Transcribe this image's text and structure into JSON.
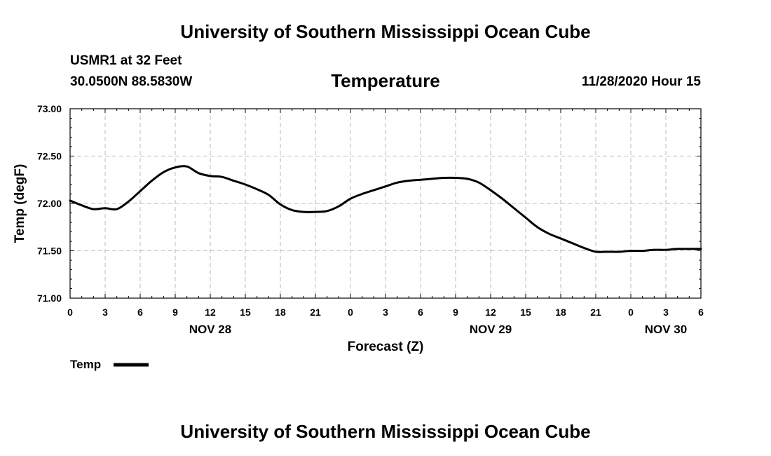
{
  "header": {
    "title": "University of Southern Mississippi Ocean Cube",
    "station": "USMR1 at 32 Feet",
    "coords": "30.0500N 88.5830W",
    "parameter": "Temperature",
    "timestamp": "11/28/2020 Hour 15"
  },
  "footer": {
    "title": "University of Southern Mississippi Ocean Cube"
  },
  "chart_data": {
    "type": "line",
    "title": "Temperature",
    "xlabel": "Forecast (Z)",
    "ylabel": "Temp (degF)",
    "ylim": [
      71.0,
      73.0
    ],
    "yticks": [
      "71.00",
      "71.50",
      "72.00",
      "72.50",
      "73.00"
    ],
    "xlim_hours": [
      0,
      54
    ],
    "xtick_labels": [
      "0",
      "3",
      "6",
      "9",
      "12",
      "15",
      "18",
      "21",
      "0",
      "3",
      "6",
      "9",
      "12",
      "15",
      "18",
      "21",
      "0",
      "3",
      "6"
    ],
    "day_labels": [
      {
        "label": "NOV 28",
        "hour": 12
      },
      {
        "label": "NOV 29",
        "hour": 36
      },
      {
        "label": "NOV 30",
        "hour": 51
      }
    ],
    "grid": true,
    "legend": {
      "label": "Temp",
      "placement": "bottom-left"
    },
    "series": [
      {
        "name": "Temp",
        "x_hours": [
          0,
          1,
          2,
          3,
          4,
          5,
          6,
          7,
          8,
          9,
          10,
          11,
          12,
          13,
          14,
          15,
          16,
          17,
          18,
          19,
          20,
          21,
          22,
          23,
          24,
          25,
          26,
          27,
          28,
          29,
          30,
          31,
          32,
          33,
          34,
          35,
          36,
          37,
          38,
          39,
          40,
          41,
          42,
          43,
          44,
          45,
          46,
          47,
          48,
          49,
          50,
          51,
          52,
          53,
          54
        ],
        "values": [
          72.03,
          71.98,
          71.94,
          71.95,
          71.94,
          72.02,
          72.13,
          72.24,
          72.33,
          72.38,
          72.39,
          72.32,
          72.29,
          72.28,
          72.24,
          72.2,
          72.15,
          72.09,
          71.99,
          71.93,
          71.91,
          71.91,
          71.92,
          71.97,
          72.05,
          72.1,
          72.14,
          72.18,
          72.22,
          72.24,
          72.25,
          72.26,
          72.27,
          72.27,
          72.26,
          72.22,
          72.14,
          72.05,
          71.95,
          71.85,
          71.75,
          71.68,
          71.63,
          71.58,
          71.53,
          71.49,
          71.49,
          71.49,
          71.5,
          71.5,
          71.51,
          71.51,
          71.52,
          71.52,
          71.52
        ]
      }
    ]
  }
}
